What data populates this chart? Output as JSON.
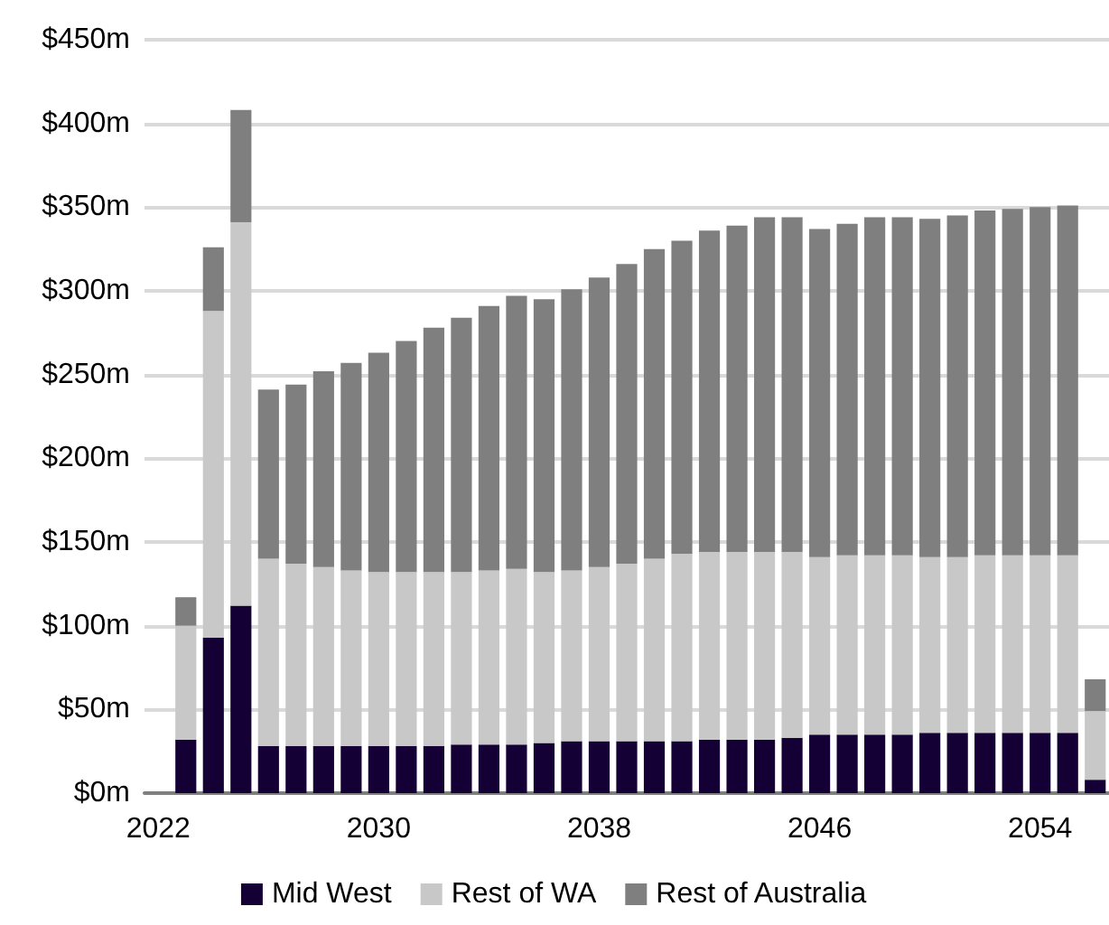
{
  "chart_data": {
    "type": "bar",
    "stacked": true,
    "grid": "y",
    "legend": "bottom",
    "x": [
      2023,
      2024,
      2025,
      2026,
      2027,
      2028,
      2029,
      2030,
      2031,
      2032,
      2033,
      2034,
      2035,
      2036,
      2037,
      2038,
      2039,
      2040,
      2041,
      2042,
      2043,
      2044,
      2045,
      2046,
      2047,
      2048,
      2049,
      2050,
      2051,
      2052,
      2053,
      2054,
      2055,
      2056
    ],
    "xlim": [
      2021.5,
      2056.5
    ],
    "xticks": [
      2022,
      2030,
      2038,
      2046,
      2054
    ],
    "ylim": [
      0,
      450
    ],
    "yticks": [
      {
        "value": 0,
        "label": "$0m"
      },
      {
        "value": 50,
        "label": "$50m"
      },
      {
        "value": 100,
        "label": "$100m"
      },
      {
        "value": 150,
        "label": "$150m"
      },
      {
        "value": 200,
        "label": "$200m"
      },
      {
        "value": 250,
        "label": "$250m"
      },
      {
        "value": 300,
        "label": "$300m"
      },
      {
        "value": 350,
        "label": "$350m"
      },
      {
        "value": 400,
        "label": "$400m"
      },
      {
        "value": 450,
        "label": "$450m"
      }
    ],
    "series": [
      {
        "name": "Mid West",
        "color": "#150035",
        "values": [
          32,
          93,
          112,
          28,
          28,
          28,
          28,
          28,
          28,
          28,
          29,
          29,
          29,
          30,
          31,
          31,
          31,
          31,
          31,
          32,
          32,
          32,
          33,
          35,
          35,
          35,
          35,
          36,
          36,
          36,
          36,
          36,
          36,
          8
        ]
      },
      {
        "name": "Rest of WA",
        "color": "#c8c8c8",
        "values": [
          68,
          195,
          229,
          112,
          109,
          107,
          105,
          104,
          104,
          104,
          103,
          104,
          105,
          102,
          102,
          104,
          106,
          109,
          112,
          112,
          112,
          112,
          111,
          106,
          107,
          107,
          107,
          105,
          105,
          106,
          106,
          106,
          106,
          41
        ]
      },
      {
        "name": "Rest of Australia",
        "color": "#7f7f7f",
        "values": [
          17,
          38,
          67,
          101,
          107,
          117,
          124,
          131,
          138,
          146,
          152,
          158,
          163,
          163,
          168,
          173,
          179,
          185,
          187,
          192,
          195,
          200,
          200,
          196,
          198,
          202,
          202,
          202,
          204,
          206,
          207,
          208,
          209,
          19
        ]
      }
    ]
  }
}
